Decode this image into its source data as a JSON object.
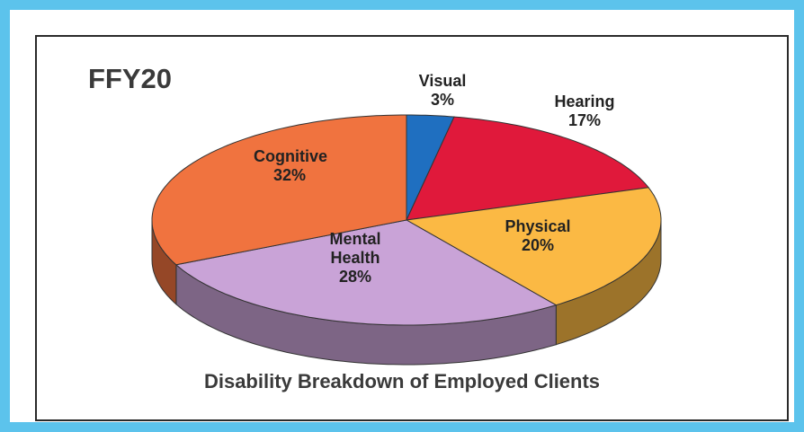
{
  "chart_data": {
    "type": "pie",
    "title": "FFY20",
    "subtitle": "Disability Breakdown of Employed Clients",
    "categories": [
      "Visual",
      "Hearing",
      "Physical",
      "Mental Health",
      "Cognitive"
    ],
    "values": [
      3,
      17,
      20,
      28,
      32
    ],
    "value_labels": [
      "3%",
      "17%",
      "20%",
      "28%",
      "32%"
    ],
    "colors": [
      "#1f6fc0",
      "#e0193b",
      "#fbb944",
      "#c9a3d7",
      "#f0733f"
    ]
  }
}
